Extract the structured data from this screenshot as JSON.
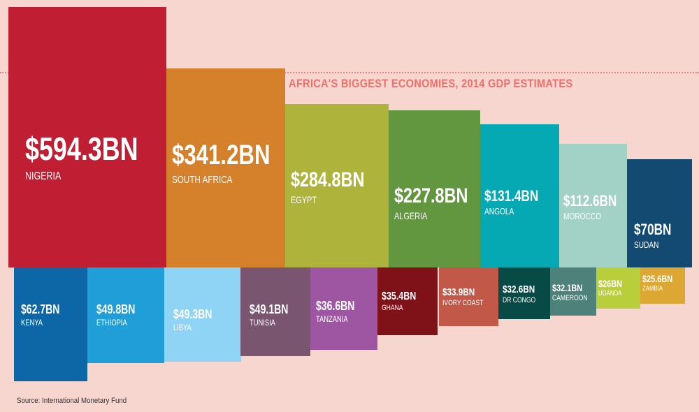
{
  "chart_data": {
    "type": "bar",
    "title": "AFRICA'S BIGGEST ECONOMIES, 2014 GDP ESTIMATES",
    "unit": "$BN",
    "categories": [
      "NIGERIA",
      "SOUTH AFRICA",
      "EGYPT",
      "ALGERIA",
      "ANGOLA",
      "MOROCCO",
      "SUDAN",
      "KENYA",
      "ETHIOPIA",
      "LIBYA",
      "TUNISIA",
      "TANZANIA",
      "GHANA",
      "IVORY COAST",
      "DR CONGO",
      "CAMEROON",
      "UGANDA",
      "ZAMBIA"
    ],
    "values": [
      594.3,
      341.2,
      284.8,
      227.8,
      131.4,
      112.6,
      70,
      62.7,
      49.8,
      49.3,
      49.1,
      36.6,
      35.4,
      33.9,
      32.6,
      32.1,
      26,
      25.6
    ],
    "value_labels": [
      "$594.3BN",
      "$341.2BN",
      "$284.8BN",
      "$227.8BN",
      "$131.4BN",
      "$112.6BN",
      "$70BN",
      "$62.7BN",
      "$49.8BN",
      "$49.3BN",
      "$49.1BN",
      "$36.6BN",
      "$35.4BN",
      "$33.9BN",
      "$32.6BN",
      "$32.1BN",
      "$26BN",
      "$25.6BN"
    ],
    "colors": [
      "#c01f33",
      "#d5802a",
      "#aeb33c",
      "#62963f",
      "#05a9b3",
      "#a2d1c6",
      "#134a72",
      "#0d66a6",
      "#209ed8",
      "#8fd3f5",
      "#7a5570",
      "#9e56a3",
      "#7f1118",
      "#c15848",
      "#084a45",
      "#4e8179",
      "#b8ce3b",
      "#dca733"
    ],
    "legend": "none",
    "grid": false
  },
  "source": "Source: International Monetary Fund"
}
